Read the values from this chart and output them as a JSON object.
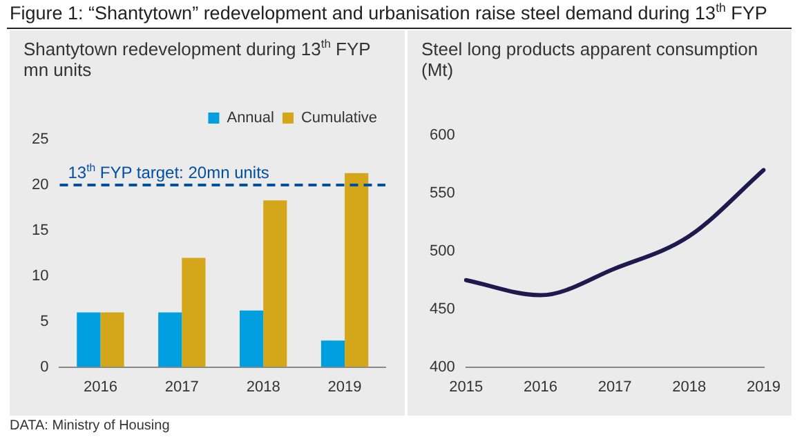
{
  "chart_data": [
    {
      "type": "bar",
      "title": "Figure 1: “Shantytown” redevelopment and urbanisation raise steel demand during 13$^{th}$ FYP",
      "subtitle": "Shantytown redevelopment during 13$^{th}$ FYP",
      "ylabel": "mn units",
      "categories": [
        "2016",
        "2017",
        "2018",
        "2019"
      ],
      "series": [
        {
          "name": "Annual",
          "color": "#009fdf",
          "values": [
            6.0,
            6.0,
            6.2,
            2.9
          ]
        },
        {
          "name": "Cumulative",
          "color": "#d4a61a",
          "values": [
            6.0,
            12.0,
            18.3,
            21.3
          ]
        }
      ],
      "ylim": [
        0,
        25
      ],
      "yticks": [
        0,
        5,
        10,
        15,
        20,
        25
      ],
      "legend": "top right",
      "ref_lines": [
        {
          "axis": "y",
          "value": 20,
          "label": "13$^{th}$ FYP target: 20mn units",
          "color": "#0050a0",
          "line_style": "dashed"
        }
      ],
      "annotations": [
        "DATA: Ministry of Housing"
      ]
    },
    {
      "type": "line",
      "title": "Steel long products apparent consumption",
      "ylabel": "(Mt)",
      "categories": [
        "2015",
        "2016",
        "2017",
        "2018",
        "2019"
      ],
      "series": [
        {
          "color": "#1f1a4d",
          "values": [
            475,
            462,
            485,
            513,
            570
          ]
        }
      ],
      "ylim": [
        400,
        600
      ],
      "yticks": [
        400,
        450,
        500,
        550,
        600
      ],
      "marker": "none",
      "line_style": "solid"
    }
  ]
}
